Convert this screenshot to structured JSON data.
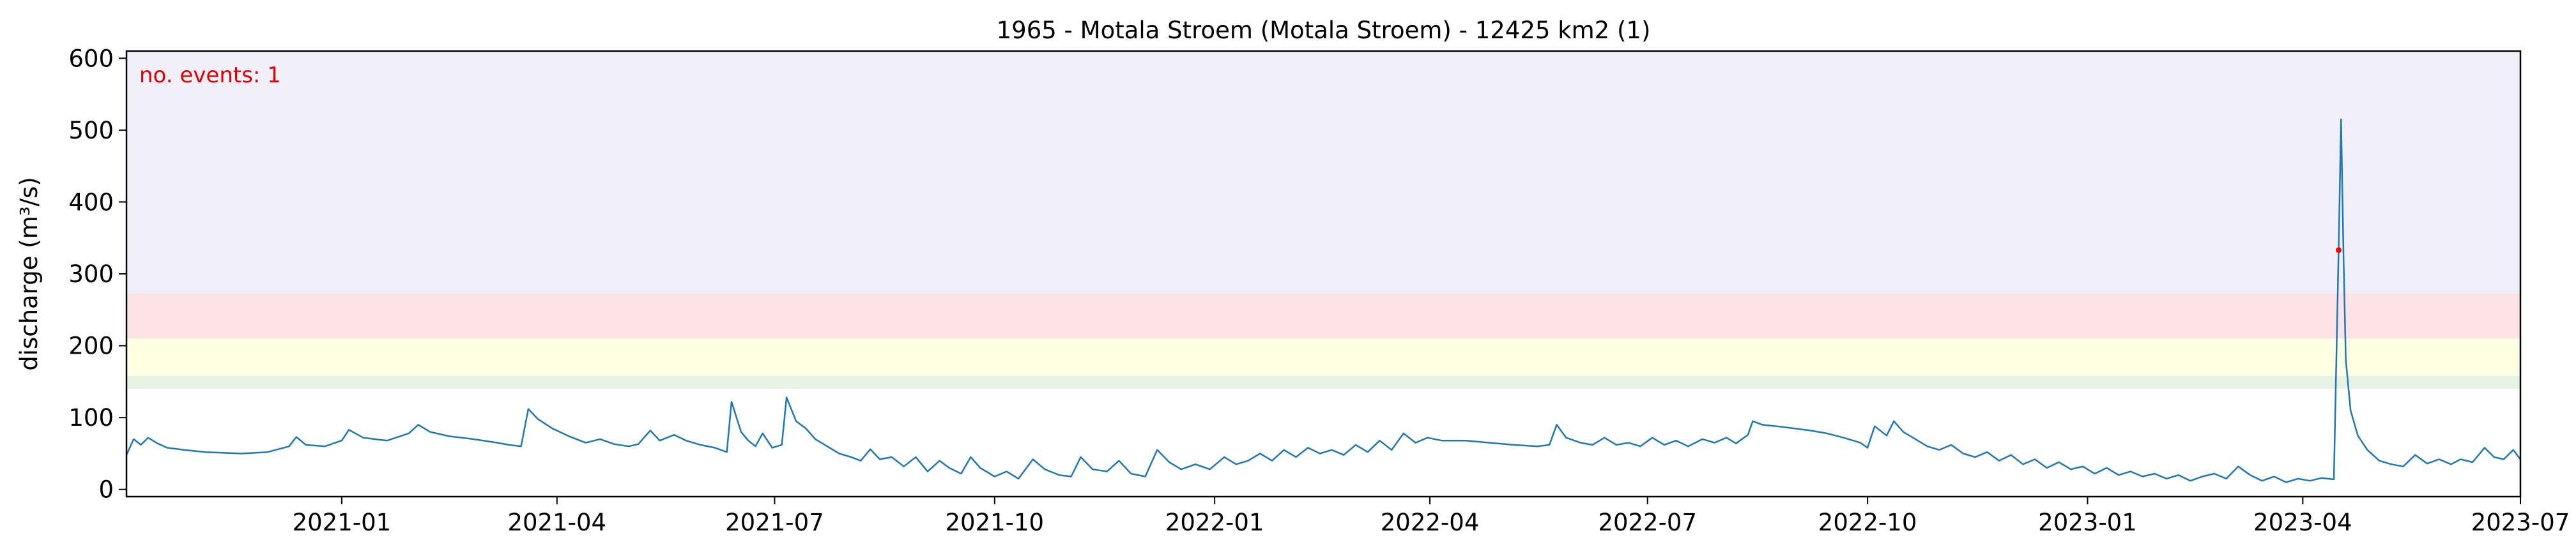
{
  "chart_data": {
    "type": "line",
    "title": "1965 - Motala Stroem (Motala Stroem) - 12425 km2 (1)",
    "xlabel": "",
    "ylabel": "discharge (m³/s)",
    "xlim": [
      "2020-10-03",
      "2023-07-01"
    ],
    "ylim": [
      -10,
      610
    ],
    "x_ticks": [
      "2021-01",
      "2021-04",
      "2021-07",
      "2021-10",
      "2022-01",
      "2022-04",
      "2022-07",
      "2022-10",
      "2023-01",
      "2023-04",
      "2023-07"
    ],
    "y_ticks": [
      0,
      100,
      200,
      300,
      400,
      500,
      600
    ],
    "grid": false,
    "threshold_bands": [
      {
        "from": 140,
        "to": 158,
        "color": "#e6f2e3"
      },
      {
        "from": 158,
        "to": 210,
        "color": "#ffffe3"
      },
      {
        "from": 210,
        "to": 273,
        "color": "#fde3e6"
      },
      {
        "from": 273,
        "to": 610,
        "color": "#f1effa"
      }
    ],
    "series": [
      {
        "color": "#1f77b4",
        "points": [
          [
            "2020-10-03",
            48
          ],
          [
            "2020-10-06",
            70
          ],
          [
            "2020-10-09",
            62
          ],
          [
            "2020-10-12",
            72
          ],
          [
            "2020-10-16",
            64
          ],
          [
            "2020-10-20",
            58
          ],
          [
            "2020-10-27",
            55
          ],
          [
            "2020-11-05",
            52
          ],
          [
            "2020-11-20",
            50
          ],
          [
            "2020-12-01",
            52
          ],
          [
            "2020-12-10",
            60
          ],
          [
            "2020-12-13",
            73
          ],
          [
            "2020-12-17",
            62
          ],
          [
            "2020-12-25",
            60
          ],
          [
            "2021-01-01",
            68
          ],
          [
            "2021-01-04",
            83
          ],
          [
            "2021-01-10",
            72
          ],
          [
            "2021-01-20",
            68
          ],
          [
            "2021-01-29",
            78
          ],
          [
            "2021-02-02",
            90
          ],
          [
            "2021-02-07",
            80
          ],
          [
            "2021-02-15",
            74
          ],
          [
            "2021-02-25",
            70
          ],
          [
            "2021-03-05",
            66
          ],
          [
            "2021-03-12",
            62
          ],
          [
            "2021-03-17",
            60
          ],
          [
            "2021-03-20",
            112
          ],
          [
            "2021-03-24",
            98
          ],
          [
            "2021-03-30",
            85
          ],
          [
            "2021-04-06",
            74
          ],
          [
            "2021-04-13",
            65
          ],
          [
            "2021-04-19",
            70
          ],
          [
            "2021-04-25",
            63
          ],
          [
            "2021-05-01",
            60
          ],
          [
            "2021-05-05",
            63
          ],
          [
            "2021-05-10",
            82
          ],
          [
            "2021-05-14",
            68
          ],
          [
            "2021-05-20",
            76
          ],
          [
            "2021-05-25",
            68
          ],
          [
            "2021-05-31",
            62
          ],
          [
            "2021-06-06",
            58
          ],
          [
            "2021-06-11",
            52
          ],
          [
            "2021-06-13",
            122
          ],
          [
            "2021-06-17",
            80
          ],
          [
            "2021-06-20",
            68
          ],
          [
            "2021-06-23",
            60
          ],
          [
            "2021-06-26",
            78
          ],
          [
            "2021-06-30",
            58
          ],
          [
            "2021-07-04",
            62
          ],
          [
            "2021-07-06",
            128
          ],
          [
            "2021-07-10",
            95
          ],
          [
            "2021-07-14",
            85
          ],
          [
            "2021-07-18",
            70
          ],
          [
            "2021-07-23",
            60
          ],
          [
            "2021-07-28",
            50
          ],
          [
            "2021-08-02",
            45
          ],
          [
            "2021-08-06",
            40
          ],
          [
            "2021-08-10",
            56
          ],
          [
            "2021-08-14",
            42
          ],
          [
            "2021-08-19",
            45
          ],
          [
            "2021-08-24",
            32
          ],
          [
            "2021-08-29",
            45
          ],
          [
            "2021-09-03",
            25
          ],
          [
            "2021-09-08",
            40
          ],
          [
            "2021-09-12",
            30
          ],
          [
            "2021-09-17",
            22
          ],
          [
            "2021-09-21",
            45
          ],
          [
            "2021-09-25",
            30
          ],
          [
            "2021-10-01",
            18
          ],
          [
            "2021-10-06",
            25
          ],
          [
            "2021-10-11",
            15
          ],
          [
            "2021-10-17",
            42
          ],
          [
            "2021-10-22",
            28
          ],
          [
            "2021-10-28",
            20
          ],
          [
            "2021-11-02",
            18
          ],
          [
            "2021-11-06",
            45
          ],
          [
            "2021-11-11",
            28
          ],
          [
            "2021-11-17",
            25
          ],
          [
            "2021-11-22",
            40
          ],
          [
            "2021-11-27",
            22
          ],
          [
            "2021-12-03",
            18
          ],
          [
            "2021-12-08",
            55
          ],
          [
            "2021-12-13",
            38
          ],
          [
            "2021-12-18",
            28
          ],
          [
            "2021-12-24",
            35
          ],
          [
            "2021-12-30",
            28
          ],
          [
            "2022-01-05",
            45
          ],
          [
            "2022-01-10",
            35
          ],
          [
            "2022-01-15",
            40
          ],
          [
            "2022-01-20",
            50
          ],
          [
            "2022-01-25",
            40
          ],
          [
            "2022-01-30",
            55
          ],
          [
            "2022-02-04",
            45
          ],
          [
            "2022-02-09",
            58
          ],
          [
            "2022-02-14",
            50
          ],
          [
            "2022-02-19",
            55
          ],
          [
            "2022-02-24",
            48
          ],
          [
            "2022-03-01",
            62
          ],
          [
            "2022-03-06",
            52
          ],
          [
            "2022-03-11",
            68
          ],
          [
            "2022-03-16",
            55
          ],
          [
            "2022-03-21",
            78
          ],
          [
            "2022-03-26",
            65
          ],
          [
            "2022-03-31",
            72
          ],
          [
            "2022-04-06",
            68
          ],
          [
            "2022-04-16",
            68
          ],
          [
            "2022-04-26",
            65
          ],
          [
            "2022-05-06",
            62
          ],
          [
            "2022-05-16",
            60
          ],
          [
            "2022-05-21",
            62
          ],
          [
            "2022-05-24",
            90
          ],
          [
            "2022-05-28",
            72
          ],
          [
            "2022-06-03",
            65
          ],
          [
            "2022-06-08",
            62
          ],
          [
            "2022-06-13",
            72
          ],
          [
            "2022-06-18",
            62
          ],
          [
            "2022-06-23",
            65
          ],
          [
            "2022-06-28",
            60
          ],
          [
            "2022-07-03",
            72
          ],
          [
            "2022-07-08",
            62
          ],
          [
            "2022-07-13",
            68
          ],
          [
            "2022-07-18",
            60
          ],
          [
            "2022-07-24",
            70
          ],
          [
            "2022-07-29",
            65
          ],
          [
            "2022-08-03",
            72
          ],
          [
            "2022-08-07",
            64
          ],
          [
            "2022-08-12",
            76
          ],
          [
            "2022-08-14",
            95
          ],
          [
            "2022-08-18",
            90
          ],
          [
            "2022-08-24",
            88
          ],
          [
            "2022-08-31",
            85
          ],
          [
            "2022-09-07",
            82
          ],
          [
            "2022-09-14",
            78
          ],
          [
            "2022-09-21",
            72
          ],
          [
            "2022-09-28",
            65
          ],
          [
            "2022-10-01",
            58
          ],
          [
            "2022-10-04",
            88
          ],
          [
            "2022-10-09",
            75
          ],
          [
            "2022-10-12",
            95
          ],
          [
            "2022-10-16",
            80
          ],
          [
            "2022-10-21",
            70
          ],
          [
            "2022-10-26",
            60
          ],
          [
            "2022-10-31",
            55
          ],
          [
            "2022-11-05",
            62
          ],
          [
            "2022-11-10",
            50
          ],
          [
            "2022-11-15",
            45
          ],
          [
            "2022-11-20",
            52
          ],
          [
            "2022-11-25",
            40
          ],
          [
            "2022-11-30",
            48
          ],
          [
            "2022-12-05",
            35
          ],
          [
            "2022-12-10",
            42
          ],
          [
            "2022-12-15",
            30
          ],
          [
            "2022-12-20",
            38
          ],
          [
            "2022-12-25",
            28
          ],
          [
            "2022-12-30",
            32
          ],
          [
            "2023-01-04",
            22
          ],
          [
            "2023-01-09",
            30
          ],
          [
            "2023-01-14",
            20
          ],
          [
            "2023-01-19",
            25
          ],
          [
            "2023-01-24",
            18
          ],
          [
            "2023-01-29",
            22
          ],
          [
            "2023-02-03",
            15
          ],
          [
            "2023-02-08",
            20
          ],
          [
            "2023-02-13",
            12
          ],
          [
            "2023-02-18",
            18
          ],
          [
            "2023-02-23",
            22
          ],
          [
            "2023-02-28",
            15
          ],
          [
            "2023-03-05",
            32
          ],
          [
            "2023-03-10",
            20
          ],
          [
            "2023-03-15",
            12
          ],
          [
            "2023-03-20",
            18
          ],
          [
            "2023-03-25",
            10
          ],
          [
            "2023-03-30",
            15
          ],
          [
            "2023-04-04",
            12
          ],
          [
            "2023-04-09",
            16
          ],
          [
            "2023-04-14",
            14
          ],
          [
            "2023-04-16",
            335
          ],
          [
            "2023-04-17",
            515
          ],
          [
            "2023-04-18",
            330
          ],
          [
            "2023-04-19",
            180
          ],
          [
            "2023-04-21",
            110
          ],
          [
            "2023-04-24",
            75
          ],
          [
            "2023-04-28",
            55
          ],
          [
            "2023-05-03",
            40
          ],
          [
            "2023-05-08",
            35
          ],
          [
            "2023-05-13",
            32
          ],
          [
            "2023-05-18",
            48
          ],
          [
            "2023-05-23",
            36
          ],
          [
            "2023-05-28",
            42
          ],
          [
            "2023-06-02",
            35
          ],
          [
            "2023-06-06",
            42
          ],
          [
            "2023-06-11",
            38
          ],
          [
            "2023-06-16",
            58
          ],
          [
            "2023-06-20",
            45
          ],
          [
            "2023-06-24",
            42
          ],
          [
            "2023-06-28",
            55
          ],
          [
            "2023-07-01",
            42
          ]
        ]
      }
    ],
    "event_markers": [
      {
        "x": "2023-04-16",
        "y": 333,
        "color": "#ff0000"
      }
    ],
    "annotation": {
      "text": "no. events: 1",
      "color": "#e00000",
      "placement": "top-left"
    }
  }
}
